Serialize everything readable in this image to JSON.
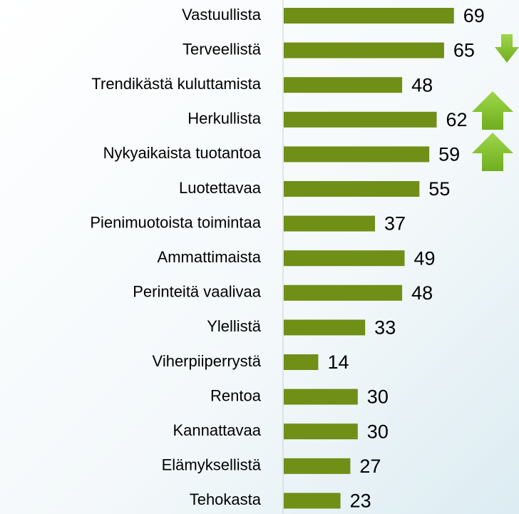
{
  "chart_data": {
    "type": "bar",
    "orientation": "horizontal",
    "categories": [
      "Vastuullista",
      "Terveellistä",
      "Trendikästä kuluttamista",
      "Herkullista",
      "Nykyaikaista tuotantoa",
      "Luotettavaa",
      "Pienimuotoista toimintaa",
      "Ammattimaista",
      "Perinteitä vaalivaa",
      "Ylellistä",
      "Viherpiiperrystä",
      "Rentoa",
      "Kannattavaa",
      "Elämyksellistä",
      "Tehokasta"
    ],
    "values": [
      69,
      65,
      48,
      62,
      59,
      55,
      37,
      49,
      48,
      33,
      14,
      30,
      30,
      27,
      23
    ],
    "color": "#6f8f17"
  }
}
